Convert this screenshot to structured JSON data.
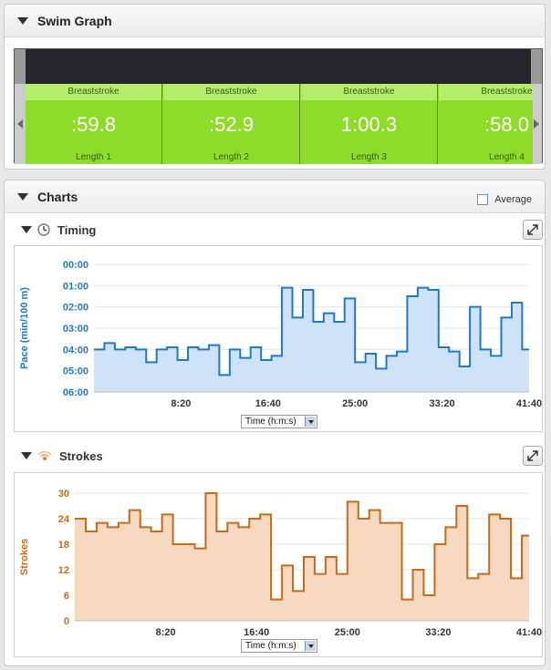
{
  "swim_graph": {
    "title": "Swim Graph",
    "lengths": [
      {
        "stroke": "Breaststroke",
        "time": ":59.8",
        "label": "Length 1"
      },
      {
        "stroke": "Breaststroke",
        "time": ":52.9",
        "label": "Length 2"
      },
      {
        "stroke": "Breaststroke",
        "time": "1:00.3",
        "label": "Length 3"
      },
      {
        "stroke": "Breaststroke",
        "time": ":58.0",
        "label": "Length 4"
      }
    ]
  },
  "charts": {
    "title": "Charts",
    "average_label": "Average",
    "timing": {
      "title": "Timing",
      "select_value": "Time (h:m:s)"
    },
    "strokes": {
      "title": "Strokes",
      "select_value": "Time (h:m:s)"
    }
  },
  "icons": {
    "collapse": "triangle-down-icon",
    "clock": "clock-icon",
    "strokes": "signal-icon",
    "expand": "expand-icon"
  },
  "colors": {
    "timing": "#1f78c8",
    "timing_fill": "#cfe3f8",
    "strokes": "#c86a18",
    "strokes_fill": "#f6d9c0",
    "swim_green": "#8edc2a"
  },
  "chart_data": [
    {
      "type": "area",
      "title": "",
      "xlabel": "",
      "ylabel": "Pace (min/100 m)",
      "xlim": [
        "0:00",
        "41:40"
      ],
      "x_tick_labels": [
        "8:20",
        "16:40",
        "25:00",
        "33:20",
        "41:40"
      ],
      "y_tick_labels": [
        "00:00",
        "01:00",
        "02:00",
        "03:00",
        "04:00",
        "05:00",
        "06:00"
      ],
      "ylim_minutes": [
        6,
        0
      ],
      "inverted_y": true,
      "grid": true,
      "x_minutes": [
        0,
        1,
        2,
        3,
        4,
        5,
        6,
        7,
        8,
        9,
        10,
        11,
        12,
        13,
        14,
        15,
        16,
        17,
        18,
        19,
        20,
        21,
        22,
        23,
        24,
        25,
        26,
        27,
        28,
        29,
        30,
        31,
        32,
        33,
        34,
        35,
        36,
        37,
        38,
        39,
        40,
        41
      ],
      "series": [
        {
          "values": [
            4.0,
            3.7,
            4.0,
            3.9,
            4.0,
            4.6,
            4.0,
            3.9,
            4.5,
            3.9,
            4.0,
            3.8,
            5.2,
            4.0,
            4.4,
            3.9,
            4.5,
            4.3,
            1.1,
            2.5,
            1.2,
            2.7,
            2.3,
            2.7,
            1.6,
            4.6,
            4.2,
            4.9,
            4.3,
            4.1,
            1.5,
            1.1,
            1.2,
            3.9,
            4.1,
            4.8,
            2.0,
            4.0,
            4.3,
            2.5,
            1.8,
            4.0
          ]
        }
      ]
    },
    {
      "type": "area",
      "title": "",
      "xlabel": "",
      "ylabel": "Strokes",
      "xlim": [
        "0:00",
        "41:40"
      ],
      "x_tick_labels": [
        "8:20",
        "16:40",
        "25:00",
        "33:20",
        "41:40"
      ],
      "ylim": [
        0,
        30
      ],
      "y_ticks": [
        0,
        6,
        12,
        18,
        24,
        30
      ],
      "grid": true,
      "x_minutes": [
        0,
        1,
        2,
        3,
        4,
        5,
        6,
        7,
        8,
        9,
        10,
        11,
        12,
        13,
        14,
        15,
        16,
        17,
        18,
        19,
        20,
        21,
        22,
        23,
        24,
        25,
        26,
        27,
        28,
        29,
        30,
        31,
        32,
        33,
        34,
        35,
        36,
        37,
        38,
        39,
        40,
        41
      ],
      "series": [
        {
          "values": [
            24,
            21,
            23,
            22,
            23,
            26,
            22,
            21,
            25,
            18,
            18,
            17,
            30,
            21,
            23,
            22,
            24,
            25,
            5,
            13,
            7,
            15,
            11,
            15,
            11,
            28,
            24,
            26,
            23,
            23,
            5,
            12,
            6,
            18,
            22,
            27,
            10,
            11,
            25,
            24,
            10,
            20
          ]
        }
      ]
    }
  ]
}
